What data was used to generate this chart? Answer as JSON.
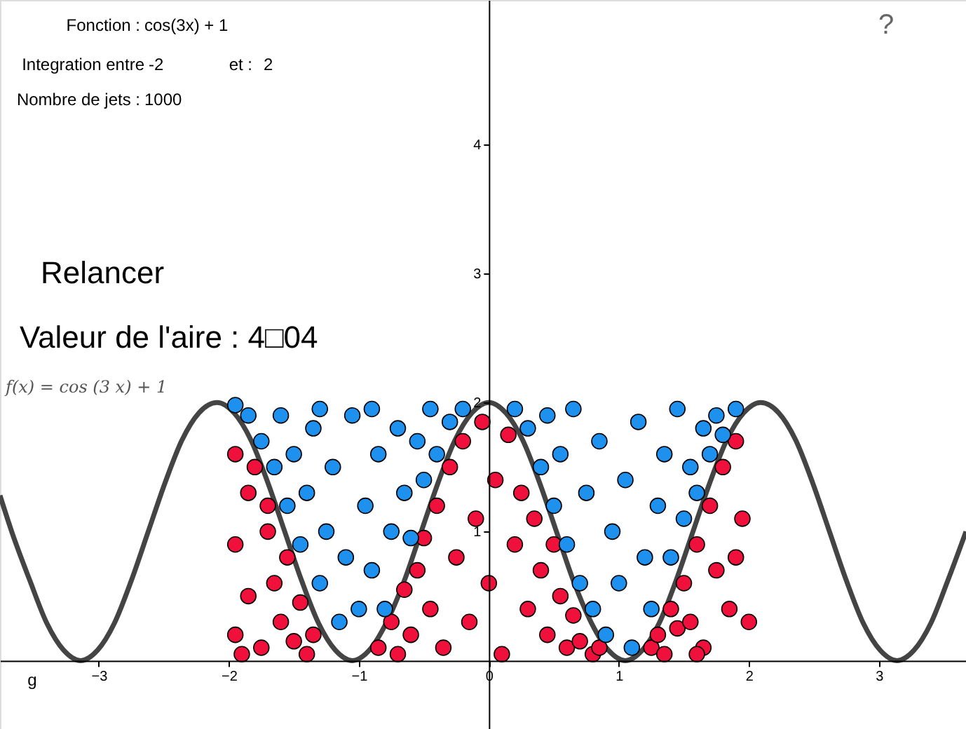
{
  "chart_data": {
    "type": "scatter",
    "xlim": [
      -3.76,
      3.67
    ],
    "ylim": [
      -0.53,
      5.12
    ],
    "xticks": [
      -3,
      -2,
      -1,
      0,
      1,
      2,
      3
    ],
    "yticks": [
      1,
      2,
      3,
      4
    ],
    "grid": false,
    "annotations": [
      "Fonction :",
      "cos(3x) + 1",
      "Integration entre",
      "-2",
      "et :",
      "2",
      "Nombre de jets :",
      "1000",
      "Relancer",
      "Valeur de l'aire : 4□04",
      "g",
      "?"
    ],
    "series": [
      {
        "type": "line",
        "name": "f(x) = cos (3 x) + 1",
        "color": "#444444",
        "line_style": "solid",
        "x": [
          -3.76,
          -3.67,
          -3.53,
          -3.4,
          -3.27,
          -3.14,
          -3.01,
          -2.88,
          -2.75,
          -2.62,
          -2.49,
          -2.36,
          -2.23,
          -2.09,
          -1.96,
          -1.83,
          -1.7,
          -1.57,
          -1.44,
          -1.31,
          -1.18,
          -1.05,
          -0.92,
          -0.79,
          -0.65,
          -0.52,
          -0.39,
          -0.26,
          -0.13,
          0,
          0.13,
          0.26,
          0.39,
          0.52,
          0.65,
          0.79,
          0.92,
          1.05,
          1.18,
          1.31,
          1.44,
          1.57,
          1.7,
          1.83,
          1.96,
          2.09,
          2.23,
          2.36,
          2.49,
          2.62,
          2.75,
          2.88,
          3.01,
          3.14,
          3.27,
          3.4,
          3.53,
          3.67
        ],
        "values": [
          1.28,
          1,
          0.62,
          0.29,
          0.08,
          0,
          0.08,
          0.29,
          0.62,
          1,
          1.38,
          1.71,
          1.92,
          2,
          1.92,
          1.71,
          1.38,
          1,
          0.62,
          0.29,
          0.08,
          0,
          0.08,
          0.29,
          0.62,
          1,
          1.38,
          1.71,
          1.92,
          2,
          1.92,
          1.71,
          1.38,
          1,
          0.62,
          0.29,
          0.08,
          0,
          0.08,
          0.29,
          0.62,
          1,
          1.38,
          1.71,
          1.92,
          2,
          1.92,
          1.71,
          1.38,
          1,
          0.62,
          0.29,
          0.08,
          0,
          0.08,
          0.29,
          0.62,
          1
        ]
      },
      {
        "type": "scatter",
        "marker": "circle",
        "color": "#f0103c",
        "x": [
          -1.95,
          -1.95,
          -1.95,
          -1.85,
          -1.85,
          -1.8,
          -1.75,
          -1.7,
          -1.65,
          -1.6,
          -1.55,
          -1.5,
          -1.45,
          -1.4,
          -1.35,
          -1.9,
          -1.7,
          -0.85,
          -0.75,
          -0.7,
          -0.65,
          -0.6,
          -0.55,
          -0.5,
          -0.45,
          -0.4,
          -0.35,
          -0.3,
          -0.25,
          -0.2,
          -0.15,
          -0.1,
          -0.05,
          0,
          0.05,
          0.1,
          0.15,
          0.2,
          0.25,
          0.3,
          0.35,
          0.4,
          0.45,
          0.5,
          0.55,
          0.6,
          0.65,
          0.7,
          0.8,
          0.85,
          1.25,
          1.3,
          1.35,
          1.4,
          1.45,
          1.5,
          1.55,
          1.6,
          1.65,
          1.7,
          1.75,
          1.8,
          1.85,
          1.9,
          1.95,
          2.0,
          1.6,
          1.9
        ],
        "values": [
          1.6,
          0.9,
          0.2,
          1.3,
          0.5,
          1.5,
          0.1,
          1.0,
          0.6,
          0.3,
          0.8,
          0.15,
          0.45,
          0.05,
          0.2,
          0.05,
          1.2,
          0.1,
          0.3,
          0.05,
          0.55,
          0.2,
          0.7,
          0.95,
          0.4,
          1.2,
          0.1,
          1.5,
          0.8,
          1.7,
          0.3,
          1.1,
          1.85,
          0.6,
          1.4,
          0.05,
          1.75,
          0.9,
          1.3,
          0.4,
          1.1,
          0.7,
          0.2,
          0.9,
          0.5,
          0.1,
          0.35,
          0.15,
          0.05,
          0.1,
          0.1,
          0.2,
          0.05,
          0.4,
          0.25,
          0.6,
          0.3,
          0.9,
          0.1,
          1.2,
          0.7,
          1.5,
          0.4,
          1.7,
          1.1,
          0.3,
          0.05,
          0.8
        ]
      },
      {
        "type": "scatter",
        "marker": "circle",
        "color": "#1e90ee",
        "x": [
          -1.95,
          -1.85,
          -1.75,
          -1.65,
          -1.6,
          -1.55,
          -1.5,
          -1.45,
          -1.4,
          -1.35,
          -1.3,
          -1.25,
          -1.2,
          -1.15,
          -1.1,
          -1.05,
          -1.0,
          -0.95,
          -0.9,
          -0.85,
          -0.8,
          -0.75,
          -0.7,
          -0.65,
          -0.6,
          -0.55,
          -0.5,
          -0.45,
          -0.4,
          -0.3,
          -0.2,
          -1.3,
          -0.9,
          0.2,
          0.3,
          0.4,
          0.45,
          0.5,
          0.55,
          0.6,
          0.65,
          0.7,
          0.75,
          0.8,
          0.85,
          0.9,
          0.95,
          1.0,
          1.05,
          1.1,
          1.15,
          1.2,
          1.25,
          1.3,
          1.35,
          1.4,
          1.45,
          1.5,
          1.55,
          1.6,
          1.65,
          1.7,
          1.75,
          1.8,
          1.9
        ],
        "values": [
          1.98,
          1.9,
          1.7,
          1.5,
          1.9,
          1.2,
          1.6,
          0.9,
          1.3,
          1.8,
          0.6,
          1.0,
          1.5,
          0.3,
          0.8,
          1.9,
          0.4,
          1.2,
          0.7,
          1.6,
          0.4,
          1.0,
          1.8,
          1.3,
          0.95,
          1.7,
          1.4,
          1.95,
          1.6,
          1.85,
          1.95,
          1.95,
          1.95,
          1.95,
          1.8,
          1.5,
          1.9,
          1.2,
          1.6,
          0.9,
          1.95,
          0.6,
          1.3,
          0.4,
          1.7,
          0.2,
          1.0,
          0.6,
          1.4,
          0.1,
          1.85,
          0.8,
          0.4,
          1.2,
          1.6,
          0.8,
          1.95,
          1.1,
          1.5,
          1.3,
          1.8,
          1.6,
          1.9,
          1.75,
          1.95
        ]
      }
    ]
  }
}
